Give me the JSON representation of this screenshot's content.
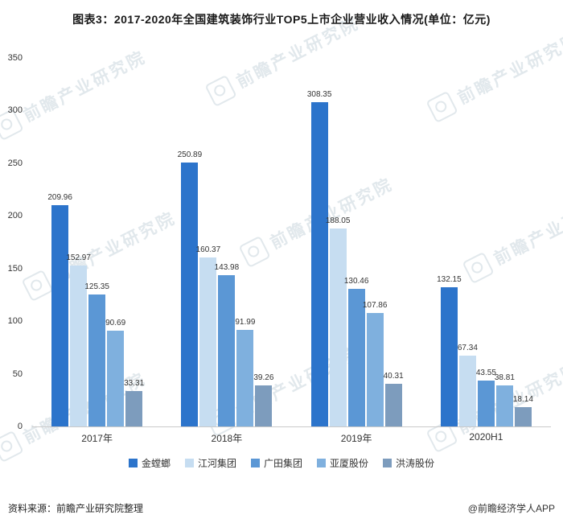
{
  "title": "图表3：2017-2020年全国建筑装饰行业TOP5上市企业营业收入情况(单位：亿元)",
  "watermark": "前瞻产业研究院",
  "footer": {
    "source": "资料来源：前瞻产业研究院整理",
    "credit": "@前瞻经济学人APP"
  },
  "chart_data": {
    "type": "bar",
    "title": "图表3：2017-2020年全国建筑装饰行业TOP5上市企业营业收入情况(单位：亿元)",
    "xlabel": "",
    "ylabel": "",
    "ylim": [
      0,
      350
    ],
    "yticks": [
      0,
      50,
      100,
      150,
      200,
      250,
      300,
      350
    ],
    "grid": false,
    "legend_position": "bottom",
    "categories": [
      "2017年",
      "2018年",
      "2019年",
      "2020H1"
    ],
    "series": [
      {
        "name": "金螳螂",
        "color": "#2c74cb",
        "values": [
          209.96,
          250.89,
          308.35,
          132.15
        ]
      },
      {
        "name": "江河集团",
        "color": "#c6ddf1",
        "values": [
          152.97,
          160.37,
          188.05,
          67.34
        ]
      },
      {
        "name": "广田集团",
        "color": "#5b97d5",
        "values": [
          125.35,
          143.98,
          130.46,
          43.55
        ]
      },
      {
        "name": "亚厦股份",
        "color": "#7fb0de",
        "values": [
          90.69,
          91.99,
          107.86,
          38.81
        ]
      },
      {
        "name": "洪涛股份",
        "color": "#7d9cbd",
        "values": [
          33.31,
          39.26,
          40.31,
          18.14
        ]
      }
    ]
  }
}
